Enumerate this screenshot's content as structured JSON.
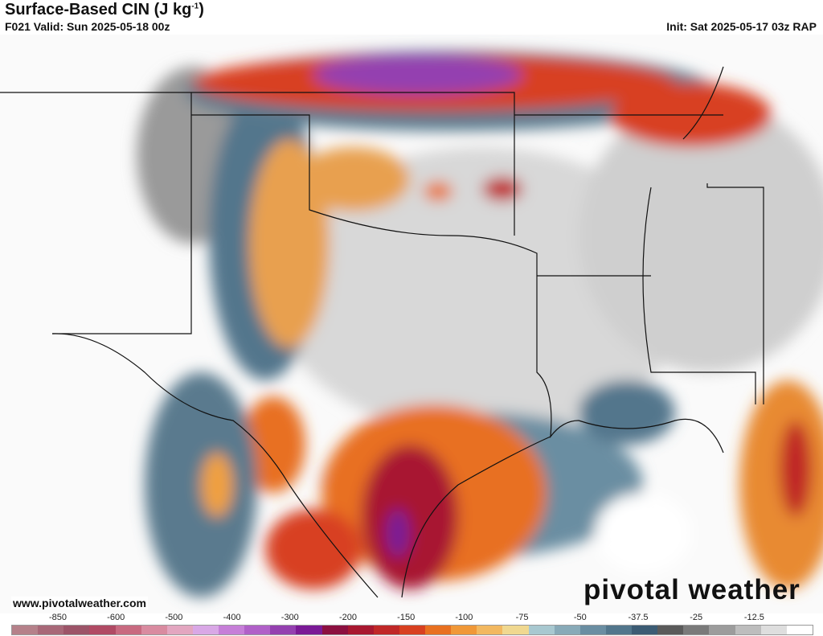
{
  "header": {
    "title": "Surface-Based CIN (J kg",
    "title_sup": "-1",
    "title_close": ")",
    "valid": "F021 Valid: Sun 2025-05-18 00z",
    "init": "Init: Sat 2025-05-17 03z RAP"
  },
  "footer": {
    "website": "www.pivotalweather.com",
    "logo": "pivotal weather"
  },
  "colorbar": {
    "labels": [
      "-850",
      "-600",
      "-500",
      "-400",
      "-300",
      "-200",
      "-150",
      "-100",
      "-75",
      "-50",
      "-37.5",
      "-25",
      "-12.5"
    ],
    "colors": [
      "#b5818a",
      "#a86878",
      "#9c5468",
      "#b04a64",
      "#c86a80",
      "#d98ba0",
      "#e3a6c0",
      "#d9a8e6",
      "#c67fd8",
      "#b060c8",
      "#9440b0",
      "#7a1a96",
      "#8c1040",
      "#a81830",
      "#c02828",
      "#d84020",
      "#e87020",
      "#f09838",
      "#f2b860",
      "#f0d890",
      "#a8c8d0",
      "#88aab8",
      "#6a8ea2",
      "#52768c",
      "#3c5c74",
      "#5a5a5a",
      "#7a7a7a",
      "#9c9c9c",
      "#bdbdbd",
      "#dedede",
      "#ffffff"
    ]
  }
}
